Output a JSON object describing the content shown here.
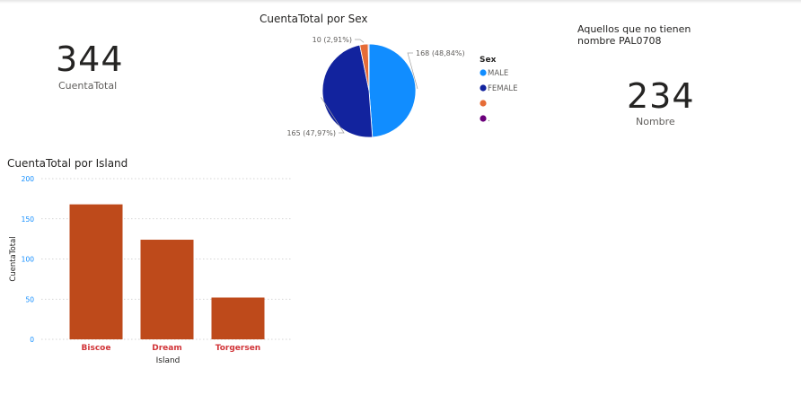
{
  "cards": {
    "total": {
      "value": "344",
      "label": "CuentaTotal"
    },
    "nombre": {
      "title_line1": "Aquellos que no tienen",
      "title_line2": "nombre PAL0708",
      "value": "234",
      "label": "Nombre"
    }
  },
  "chart_data": [
    {
      "type": "pie",
      "title": "CuentaTotal por Sex",
      "legend_title": "Sex",
      "legend_position": "right",
      "slices": [
        {
          "label": "MALE",
          "value": 168,
          "data_label": "168 (48,84%)",
          "color": "#118DFF"
        },
        {
          "label": "FEMALE",
          "value": 165,
          "data_label": "165 (47,97%)",
          "color": "#12239E"
        },
        {
          "label": "",
          "value": 10,
          "data_label": "10 (2,91%)",
          "color": "#E66C37"
        },
        {
          "label": ".",
          "value": 1,
          "data_label": "",
          "color": "#6B007B"
        }
      ]
    },
    {
      "type": "bar",
      "title": "CuentaTotal por Island",
      "categories": [
        "Biscoe",
        "Dream",
        "Torgersen"
      ],
      "values": [
        168,
        124,
        52
      ],
      "xlabel": "Island",
      "ylabel": "CuentaTotal",
      "ylim": [
        0,
        200
      ],
      "yticks": [
        0,
        50,
        100,
        150,
        200
      ],
      "grid": true,
      "bar_color": "#BE4A1B",
      "category_label_color": "#D13438",
      "tick_label_color": "#118DFF"
    }
  ]
}
